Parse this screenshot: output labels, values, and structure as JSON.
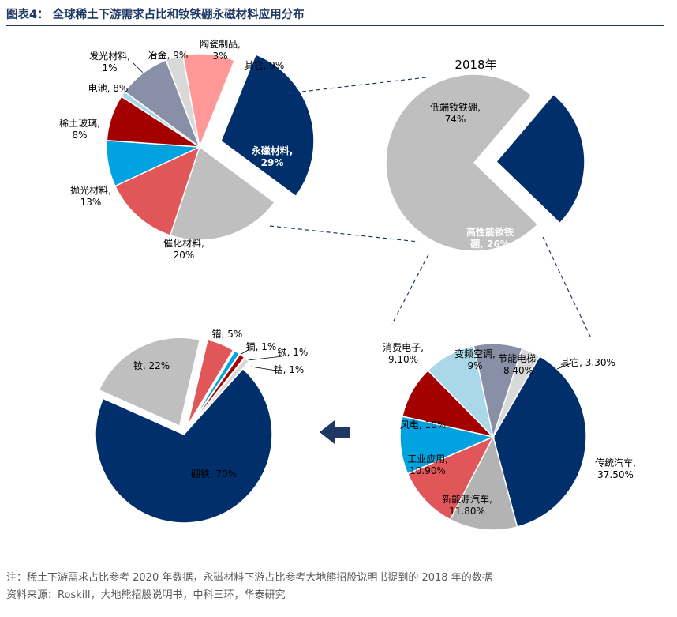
{
  "figure": {
    "title": "图表4：   全球稀土下游需求占比和钕铁硼永磁材料应用分布",
    "note": "注：稀土下游需求占比参考 2020 年数据，永磁材料下游占比参考大地熊招股说明书提到的 2018 年的数据",
    "source": "资料来源：Roskill，大地熊招股说明书，中科三环，华泰研究"
  },
  "colors": {
    "title": "#1f3864",
    "navy": "#002f6c",
    "gray": "#bfbfbf",
    "red": "#e15759",
    "blue": "#00a3e0",
    "darkred": "#a50000",
    "slate": "#8a8fa8",
    "lightblue": "#a9d8e8",
    "pink": "#ff9896",
    "lightgray": "#d9d9d9",
    "midgray": "#b3b3b3"
  },
  "chart_data": [
    {
      "type": "pie",
      "title": "",
      "unit": "%",
      "slices": [
        {
          "label": "永磁材料",
          "value": 29,
          "display": "永磁材料,\n29%"
        },
        {
          "label": "催化材料",
          "value": 20,
          "display": "催化材料,\n20%"
        },
        {
          "label": "抛光材料",
          "value": 13,
          "display": "抛光材料,\n13%"
        },
        {
          "label": "稀土玻璃",
          "value": 8,
          "display": "稀土玻璃,\n8%"
        },
        {
          "label": "电池",
          "value": 8,
          "display": "电池, 8%"
        },
        {
          "label": "发光材料",
          "value": 1,
          "display": "发光材料,\n1%"
        },
        {
          "label": "冶金",
          "value": 9,
          "display": "冶金, 9%"
        },
        {
          "label": "陶瓷制品",
          "value": 3,
          "display": "陶瓷制品,\n3%"
        },
        {
          "label": "其它",
          "value": 9,
          "display": "其它, 9%"
        }
      ]
    },
    {
      "type": "pie",
      "title": "2018年",
      "unit": "%",
      "slices": [
        {
          "label": "低端钕铁硼",
          "value": 74,
          "display": "低端钕铁硼,\n74%"
        },
        {
          "label": "高性能钕铁硼",
          "value": 26,
          "display": "高性能钕铁\n硼, 26%"
        }
      ]
    },
    {
      "type": "pie",
      "title": "",
      "unit": "%",
      "slices": [
        {
          "label": "传统汽车",
          "value": 37.5,
          "display": "传统汽车,\n37.50%"
        },
        {
          "label": "新能源汽车",
          "value": 11.8,
          "display": "新能源汽车,\n11.80%"
        },
        {
          "label": "工业应用",
          "value": 10.9,
          "display": "工业应用,\n10.90%"
        },
        {
          "label": "风电",
          "value": 10,
          "display": "风电, 10%"
        },
        {
          "label": "消费电子",
          "value": 9.1,
          "display": "消费电子,\n9.10%"
        },
        {
          "label": "变频空调",
          "value": 9,
          "display": "变频空调,\n9%"
        },
        {
          "label": "节能电梯",
          "value": 8.4,
          "display": "节能电梯,\n8.40%"
        },
        {
          "label": "其它",
          "value": 3.3,
          "display": "其它, 3.30%"
        }
      ]
    },
    {
      "type": "pie",
      "title": "",
      "unit": "%",
      "slices": [
        {
          "label": "硼铁",
          "value": 70,
          "display": "硼铁, 70%"
        },
        {
          "label": "钕",
          "value": 22,
          "display": "钕, 22%"
        },
        {
          "label": "镨",
          "value": 5,
          "display": "镨, 5%"
        },
        {
          "label": "镝",
          "value": 1,
          "display": "镝, 1%"
        },
        {
          "label": "铽",
          "value": 1,
          "display": "铽, 1%"
        },
        {
          "label": "钴",
          "value": 1,
          "display": "钴, 1%"
        }
      ]
    }
  ]
}
